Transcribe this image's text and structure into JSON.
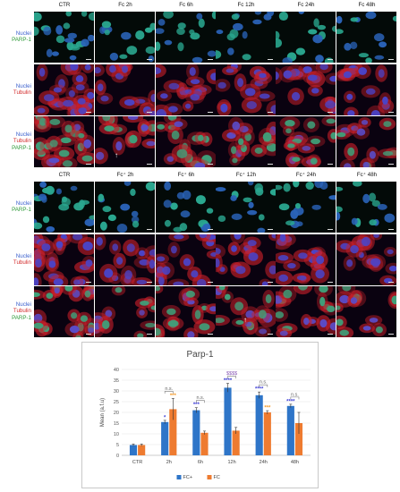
{
  "panel_a": {
    "columns": [
      "CTR",
      "Fc 2h",
      "Fc 6h",
      "Fc 12h",
      "Fc 24h",
      "Fc 48h"
    ],
    "rows": [
      {
        "labels": [
          {
            "text": "Nuclei",
            "color": "blue"
          },
          {
            "text": "PARP-1",
            "color": "green"
          }
        ]
      },
      {
        "labels": [
          {
            "text": "Nuclei",
            "color": "blue"
          },
          {
            "text": "Tubulin",
            "color": "red"
          }
        ]
      },
      {
        "labels": [
          {
            "text": "Nuclei",
            "color": "blue"
          },
          {
            "text": "Tubulin",
            "color": "red"
          },
          {
            "text": "PARP-1",
            "color": "green"
          }
        ]
      }
    ]
  },
  "panel_b": {
    "columns": [
      "CTR",
      "Fc⁺ 2h",
      "Fc⁺ 6h",
      "Fc⁺ 12h",
      "Fc⁺ 24h",
      "Fc⁺ 48h"
    ],
    "rows": [
      {
        "labels": [
          {
            "text": "Nuclei",
            "color": "blue"
          },
          {
            "text": "PARP-1",
            "color": "green"
          }
        ]
      },
      {
        "labels": [
          {
            "text": "Nuclei",
            "color": "blue"
          },
          {
            "text": "Tubulin",
            "color": "red"
          }
        ]
      },
      {
        "labels": [
          {
            "text": "Nuclei",
            "color": "blue"
          },
          {
            "text": "Tubulin",
            "color": "red"
          },
          {
            "text": "PARP-1",
            "color": "green"
          }
        ]
      }
    ]
  },
  "colors": {
    "blue_label": "#3a5fcd",
    "red_label": "#d22a2a",
    "green_label": "#2e9a3a",
    "fc_plus": "#2e75c8",
    "fc": "#ee7b30",
    "sig_blue": "#3b3bd6",
    "sig_orange": "#f39a2a",
    "sig_purple": "#8a5bb5"
  },
  "chart_data": {
    "type": "bar",
    "title": "Parp-1",
    "ylabel": "Mean (a.f.u)",
    "xlabel": "",
    "ylim": [
      0,
      40
    ],
    "yticks": [
      0,
      5,
      10,
      15,
      20,
      25,
      30,
      35,
      40
    ],
    "categories": [
      "CTR",
      "2h",
      "6h",
      "12h",
      "24h",
      "48h"
    ],
    "series": [
      {
        "name": "FC+",
        "values": [
          4.8,
          15.5,
          21,
          31.5,
          28,
          23
        ],
        "errors": [
          0.5,
          0.8,
          1.2,
          2,
          1.5,
          0.8
        ]
      },
      {
        "name": "FC",
        "values": [
          4.8,
          21.5,
          10.5,
          11.5,
          20,
          15
        ],
        "errors": [
          0.5,
          5,
          0.8,
          1.5,
          0.8,
          5
        ]
      }
    ],
    "annotations": {
      "fc_plus_sig": [
        "",
        "*",
        "***",
        "****",
        "****",
        "****"
      ],
      "fc_sig": [
        "",
        "***",
        "",
        "",
        "***",
        ""
      ],
      "bracket_labels": [
        "",
        "n.s.",
        "n.s.",
        "$$$$",
        "n.s.",
        "n.s."
      ]
    },
    "legend_position": "bottom",
    "grid": true
  }
}
